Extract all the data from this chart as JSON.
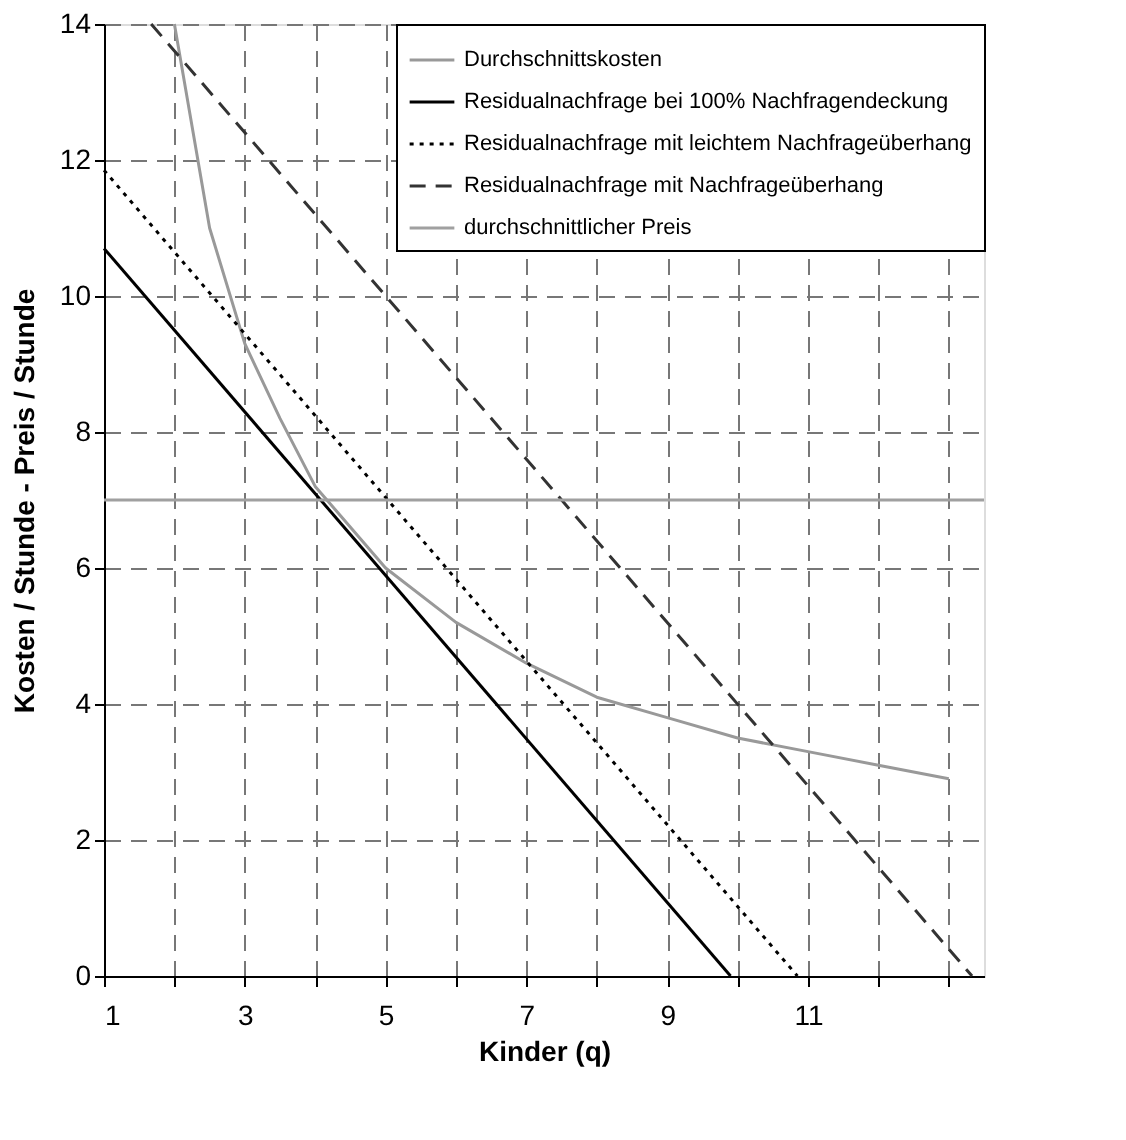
{
  "chart_data": {
    "type": "line",
    "xlabel": "Kinder (q)",
    "ylabel": "Kosten / Stunde - Preis / Stunde",
    "xlim": [
      1,
      13.5
    ],
    "ylim": [
      0,
      14
    ],
    "xticks": [
      1,
      {
        "value": 2,
        "label": null
      },
      3,
      {
        "value": 4,
        "label": null
      },
      5,
      {
        "value": 6,
        "label": null
      },
      7,
      {
        "value": 8,
        "label": null
      },
      9,
      {
        "value": 10,
        "label": null
      },
      11,
      {
        "value": 12,
        "label": null
      },
      {
        "value": 13,
        "label": null
      }
    ],
    "yticks": [
      0,
      2,
      4,
      6,
      8,
      10,
      12,
      14
    ],
    "grid": true,
    "legend": "top right",
    "marker": "none",
    "series": [
      {
        "name": "Durchschnittskosten",
        "color": "#999999",
        "line_style": "solid",
        "x": [
          2,
          2.5,
          3,
          3.5,
          4,
          5,
          6,
          7,
          8,
          9,
          10,
          11,
          12,
          13
        ],
        "values": [
          14,
          11,
          9.3,
          8.2,
          7.2,
          6,
          5.2,
          4.6,
          4.1,
          3.8,
          3.5,
          3.3,
          3.1,
          2.9
        ]
      },
      {
        "name": "Residualnachfrage bei 100% Nachfragendeckung",
        "color": "#000000",
        "line_style": "solid",
        "x": [
          1,
          9.9
        ],
        "values": [
          10.7,
          0
        ]
      },
      {
        "name": "Residualnachfrage mit leichtem Nachfrageüberhang",
        "color": "#000000",
        "line_style": "dotted",
        "x": [
          1,
          10.85
        ],
        "values": [
          11.85,
          0
        ]
      },
      {
        "name": "Residualnachfrage mit Nachfrageüberhang",
        "color": "#333333",
        "line_style": "dashed",
        "x": [
          1.67,
          13.33
        ],
        "values": [
          14,
          0
        ]
      },
      {
        "name": "durchschnittlicher Preis",
        "color": "#a0a0a0",
        "line_style": "solid",
        "x": [
          1,
          13.5
        ],
        "values": [
          7,
          7
        ]
      }
    ]
  }
}
